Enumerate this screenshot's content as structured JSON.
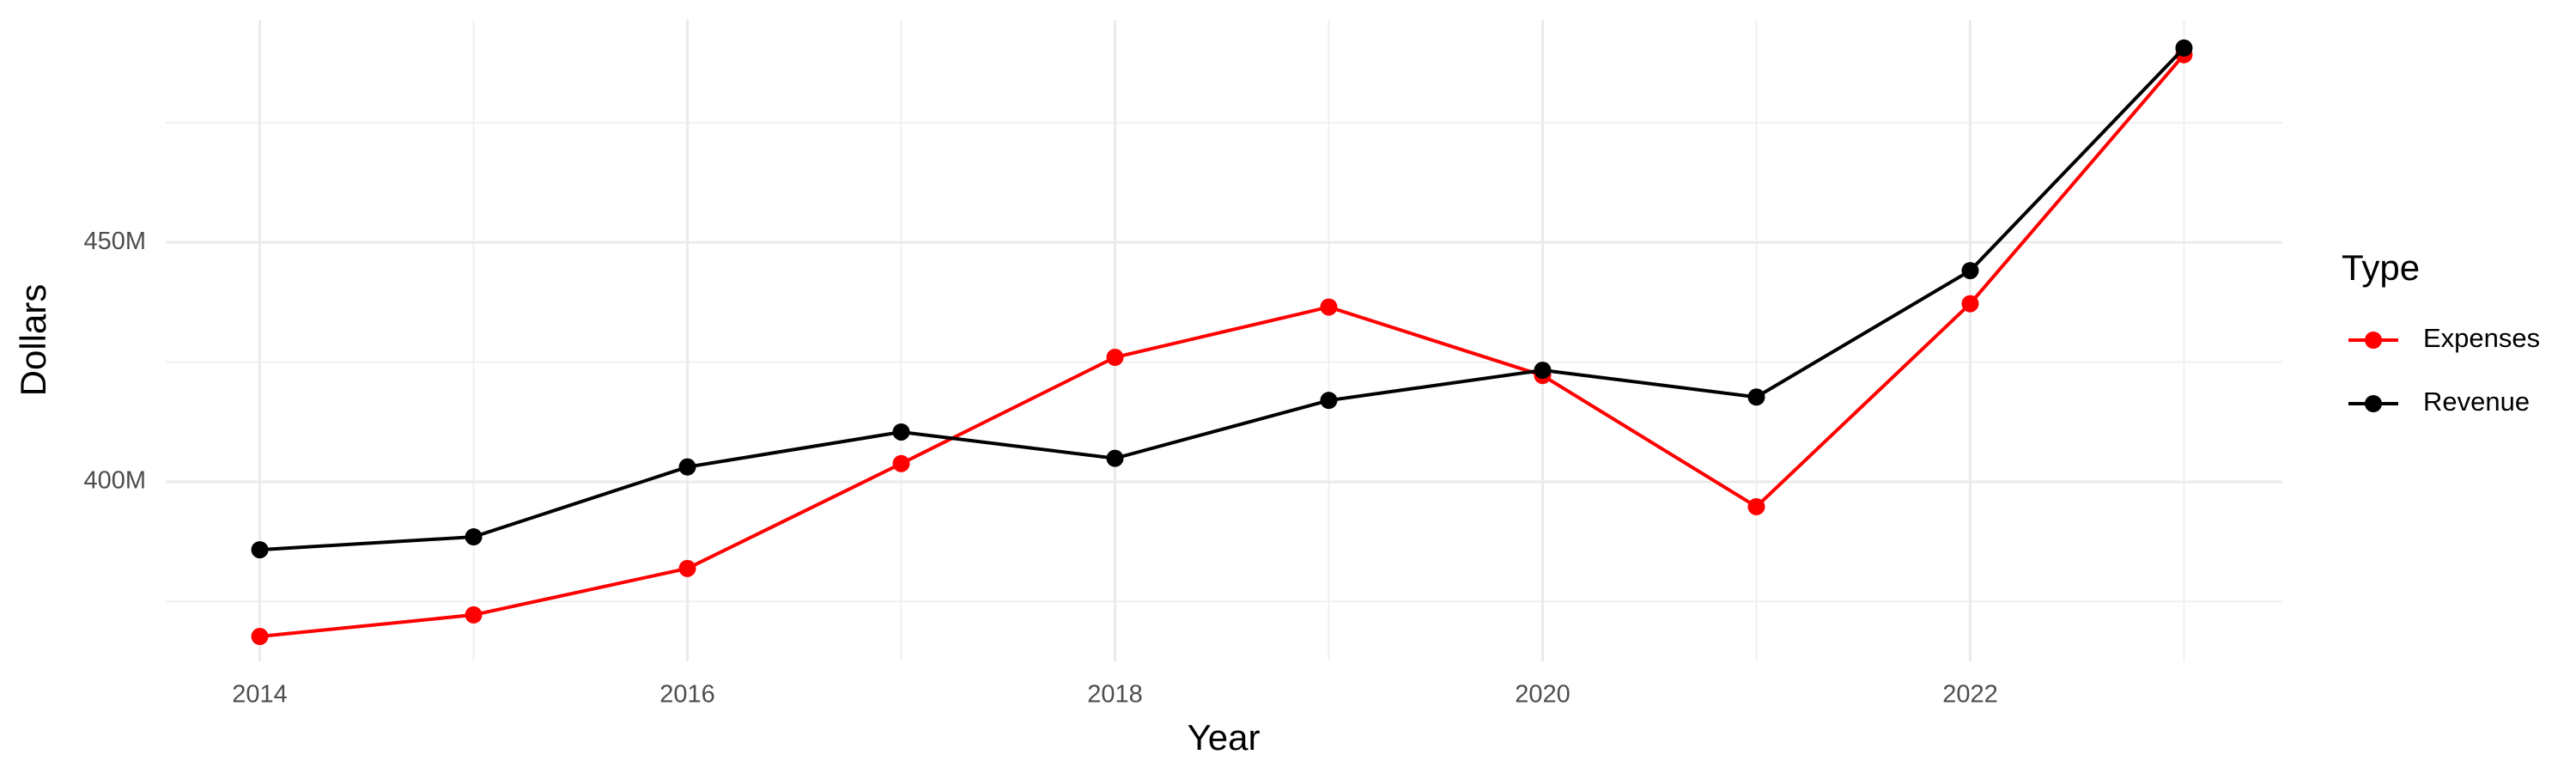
{
  "chart_data": {
    "type": "line",
    "x_label": "Year",
    "y_label": "Dollars",
    "legend_title": "Type",
    "legend_position": "right",
    "x": [
      2014,
      2015,
      2016,
      2017,
      2018,
      2019,
      2020,
      2021,
      2022,
      2023
    ],
    "series": [
      {
        "name": "Expenses",
        "color": "#ff0000",
        "values": [
          367700000,
          372200000,
          381900000,
          403800000,
          426000000,
          436500000,
          422200000,
          394800000,
          437200000,
          489200000
        ]
      },
      {
        "name": "Revenue",
        "color": "#000000",
        "values": [
          385800000,
          388500000,
          403100000,
          410400000,
          404900000,
          417000000,
          423300000,
          417700000,
          444100000,
          490600000
        ]
      }
    ],
    "xlim": [
      2013.56,
      2023.46
    ],
    "xticks": [
      2014,
      2016,
      2018,
      2020,
      2022
    ],
    "x_minor_ticks": [
      2015,
      2017,
      2019,
      2021,
      2023
    ],
    "ylim": [
      362500000,
      496500000
    ],
    "yticks": [
      {
        "value": 400000000,
        "label": "400M"
      },
      {
        "value": 450000000,
        "label": "450M"
      }
    ],
    "y_minor_ticks": [
      375000000,
      425000000,
      475000000
    ],
    "grid": true
  }
}
